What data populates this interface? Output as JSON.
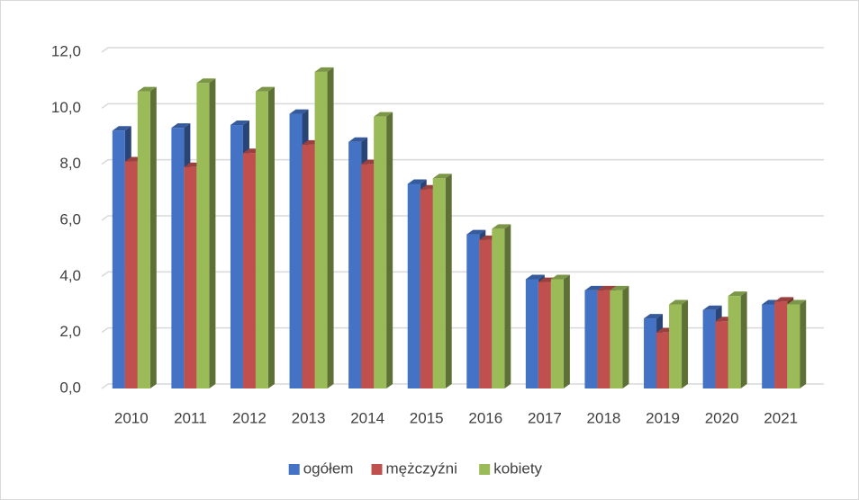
{
  "chart_data": {
    "type": "bar3d",
    "categories": [
      "2010",
      "2011",
      "2012",
      "2013",
      "2014",
      "2015",
      "2016",
      "2017",
      "2018",
      "2019",
      "2020",
      "2021"
    ],
    "series": [
      {
        "name": "ogółem",
        "color": "#4472c4",
        "values": [
          9.2,
          9.3,
          9.4,
          9.8,
          8.8,
          7.3,
          5.5,
          3.9,
          3.5,
          2.5,
          2.8,
          3.0
        ]
      },
      {
        "name": "mężczyźni",
        "color": "#c0504d",
        "values": [
          8.1,
          7.9,
          8.4,
          8.7,
          8.0,
          7.1,
          5.3,
          3.8,
          3.5,
          2.0,
          2.4,
          3.1
        ]
      },
      {
        "name": "kobiety",
        "color": "#9bbb59",
        "values": [
          10.6,
          10.9,
          10.6,
          11.3,
          9.7,
          7.5,
          5.7,
          3.9,
          3.5,
          3.0,
          3.3,
          3.0
        ]
      }
    ],
    "ylim": [
      0,
      12
    ],
    "yticks": [
      {
        "value": 0,
        "label": "0,0"
      },
      {
        "value": 2,
        "label": "2,0"
      },
      {
        "value": 4,
        "label": "4,0"
      },
      {
        "value": 6,
        "label": "6,0"
      },
      {
        "value": 8,
        "label": "8,0"
      },
      {
        "value": 10,
        "label": "10,0"
      },
      {
        "value": 12,
        "label": "12,0"
      }
    ],
    "grid": true,
    "legend": "bottom"
  }
}
